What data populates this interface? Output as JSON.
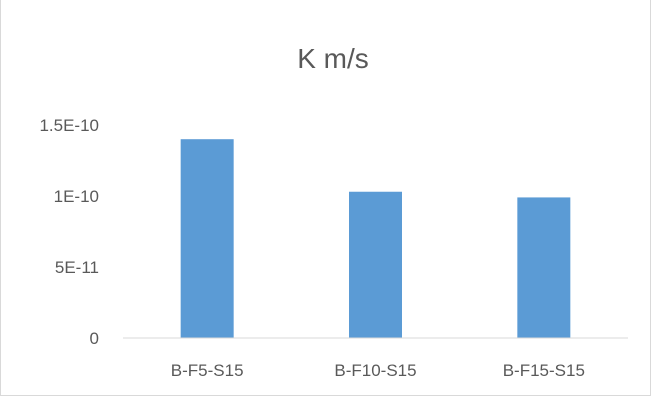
{
  "chart_data": {
    "type": "bar",
    "title": "K m/s",
    "xlabel": "",
    "ylabel": "",
    "categories": [
      "B-F5-S15",
      "B-F10-S15",
      "B-F15-S15"
    ],
    "values": [
      1.4e-10,
      1.03e-10,
      9.9e-11
    ],
    "ylim": [
      0,
      1.5e-10
    ],
    "yticks": [
      {
        "value": 0,
        "label": "0"
      },
      {
        "value": 5e-11,
        "label": "5E-11"
      },
      {
        "value": 1e-10,
        "label": "1E-10"
      },
      {
        "value": 1.5e-10,
        "label": "1.5E-10"
      }
    ],
    "grid": false,
    "legend": "none",
    "bar_color": "#5b9bd5",
    "axis_color": "#d9d9d9",
    "text_color": "#595959"
  }
}
